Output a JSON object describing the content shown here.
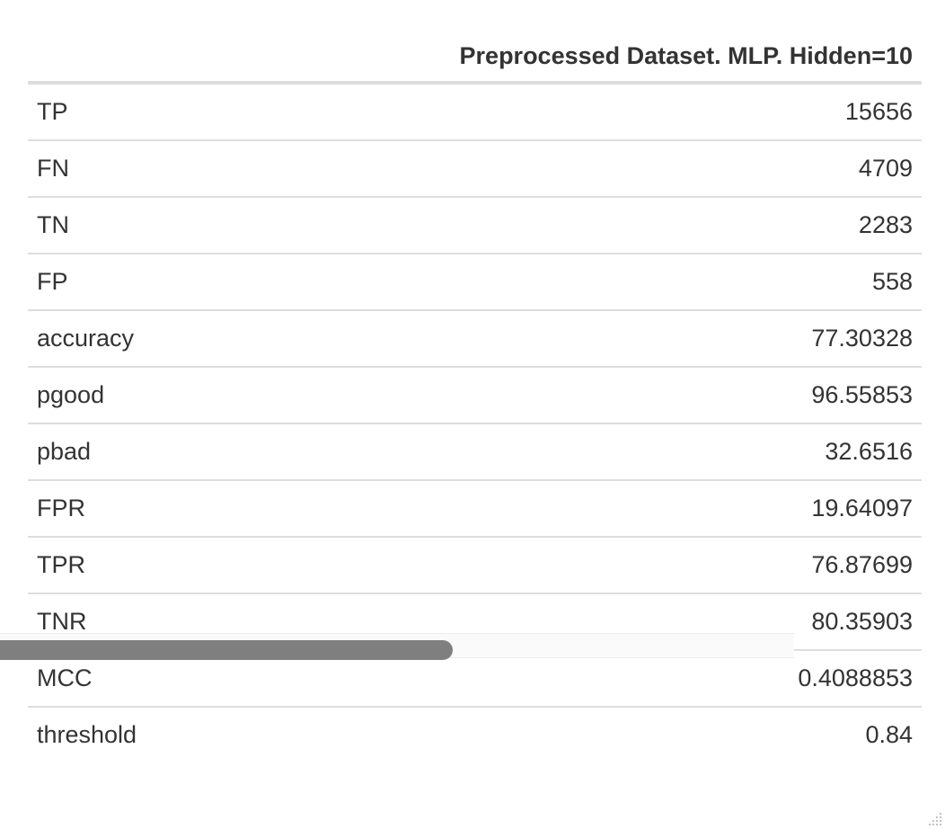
{
  "table": {
    "header": {
      "label": "",
      "value": "Preprocessed Dataset. MLP. Hidden=10"
    },
    "rows": [
      {
        "label": "TP",
        "value": "15656"
      },
      {
        "label": "FN",
        "value": "4709"
      },
      {
        "label": "TN",
        "value": "2283"
      },
      {
        "label": "FP",
        "value": "558"
      },
      {
        "label": "accuracy",
        "value": "77.30328"
      },
      {
        "label": "pgood",
        "value": "96.55853"
      },
      {
        "label": "pbad",
        "value": "32.6516"
      },
      {
        "label": "FPR",
        "value": "19.64097"
      },
      {
        "label": "TPR",
        "value": "76.87699"
      },
      {
        "label": "TNR",
        "value": "80.35903"
      },
      {
        "label": "MCC",
        "value": "0.4088853"
      },
      {
        "label": "threshold",
        "value": "0.84"
      }
    ]
  },
  "scrollbar": {
    "position_fraction": 0.0,
    "visible_fraction": 0.57
  },
  "colors": {
    "text": "#333333",
    "rule": "#dddddd",
    "scroll_thumb": "#7f7f7f"
  }
}
